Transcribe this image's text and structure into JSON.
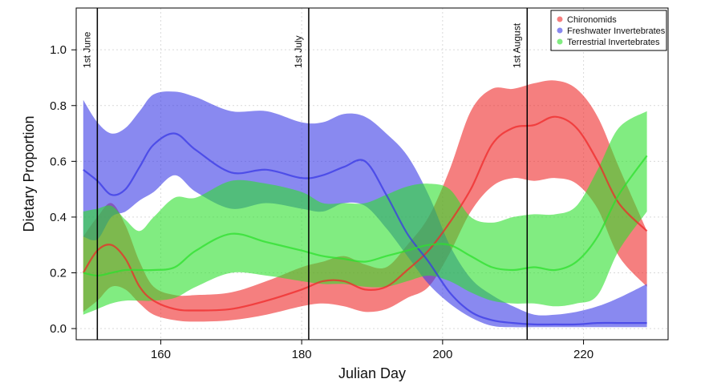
{
  "chart_data": {
    "type": "area",
    "xlabel": "Julian Day",
    "ylabel": "Dietary Proportion",
    "xlim": [
      148,
      232
    ],
    "ylim": [
      -0.04,
      1.15
    ],
    "x_ticks": [
      160,
      180,
      200,
      220
    ],
    "y_ticks": [
      0.0,
      0.2,
      0.4,
      0.6,
      0.8,
      1.0
    ],
    "x_tick_labels": [
      "160",
      "180",
      "200",
      "220"
    ],
    "y_tick_labels": [
      "0.0",
      "0.2",
      "0.4",
      "0.6",
      "0.8",
      "1.0"
    ],
    "grid": true,
    "legend_position": "top-right",
    "annotations": [
      {
        "label": "1st June",
        "x": 151
      },
      {
        "label": "1st July",
        "x": 181
      },
      {
        "label": "1st August",
        "x": 212
      }
    ],
    "series": [
      {
        "name": "Chironomids",
        "color": "#ef2a2a",
        "x": [
          149,
          151,
          153,
          155,
          157,
          159,
          162,
          165,
          170,
          175,
          180,
          183,
          186,
          189,
          192,
          195,
          198,
          201,
          204,
          207,
          210,
          213,
          216,
          219,
          222,
          225,
          229
        ],
        "mean": [
          0.2,
          0.28,
          0.3,
          0.25,
          0.15,
          0.1,
          0.07,
          0.065,
          0.07,
          0.1,
          0.14,
          0.17,
          0.17,
          0.14,
          0.15,
          0.21,
          0.28,
          0.38,
          0.5,
          0.66,
          0.72,
          0.73,
          0.76,
          0.72,
          0.6,
          0.45,
          0.35
        ],
        "lower": [
          0.06,
          0.1,
          0.15,
          0.14,
          0.09,
          0.05,
          0.03,
          0.025,
          0.03,
          0.05,
          0.08,
          0.09,
          0.08,
          0.06,
          0.07,
          0.11,
          0.15,
          0.27,
          0.42,
          0.51,
          0.54,
          0.53,
          0.54,
          0.52,
          0.43,
          0.26,
          0.15
        ],
        "upper": [
          0.33,
          0.4,
          0.45,
          0.37,
          0.24,
          0.15,
          0.12,
          0.12,
          0.13,
          0.17,
          0.22,
          0.24,
          0.26,
          0.23,
          0.22,
          0.3,
          0.4,
          0.57,
          0.78,
          0.86,
          0.86,
          0.88,
          0.89,
          0.86,
          0.76,
          0.58,
          0.35
        ]
      },
      {
        "name": "Freshwater Invertebrates",
        "color": "#3a3ae6",
        "x": [
          149,
          151,
          153,
          155,
          157,
          159,
          162,
          165,
          170,
          175,
          180,
          183,
          186,
          189,
          192,
          195,
          198,
          201,
          204,
          207,
          210,
          213,
          216,
          219,
          222,
          225,
          229
        ],
        "mean": [
          0.57,
          0.53,
          0.48,
          0.5,
          0.58,
          0.66,
          0.7,
          0.64,
          0.56,
          0.57,
          0.54,
          0.55,
          0.58,
          0.6,
          0.48,
          0.34,
          0.24,
          0.13,
          0.06,
          0.03,
          0.02,
          0.015,
          0.015,
          0.015,
          0.02,
          0.02,
          0.02
        ],
        "lower": [
          0.33,
          0.32,
          0.4,
          0.42,
          0.46,
          0.49,
          0.55,
          0.49,
          0.43,
          0.45,
          0.43,
          0.42,
          0.45,
          0.44,
          0.36,
          0.26,
          0.16,
          0.09,
          0.04,
          0.01,
          0.005,
          0.005,
          0.005,
          0.005,
          0.005,
          0.005,
          0.005
        ],
        "upper": [
          0.82,
          0.74,
          0.7,
          0.72,
          0.78,
          0.84,
          0.85,
          0.83,
          0.78,
          0.78,
          0.74,
          0.74,
          0.77,
          0.76,
          0.7,
          0.62,
          0.48,
          0.3,
          0.18,
          0.12,
          0.08,
          0.05,
          0.05,
          0.06,
          0.08,
          0.11,
          0.16
        ]
      },
      {
        "name": "Terrestrial Invertebrates",
        "color": "#2de02d",
        "x": [
          149,
          151,
          153,
          155,
          157,
          159,
          162,
          165,
          170,
          175,
          180,
          183,
          186,
          189,
          192,
          195,
          198,
          201,
          204,
          207,
          210,
          213,
          216,
          219,
          222,
          225,
          229
        ],
        "mean": [
          0.2,
          0.19,
          0.2,
          0.21,
          0.21,
          0.21,
          0.22,
          0.28,
          0.34,
          0.31,
          0.28,
          0.26,
          0.25,
          0.24,
          0.26,
          0.28,
          0.3,
          0.3,
          0.26,
          0.22,
          0.21,
          0.22,
          0.21,
          0.24,
          0.33,
          0.48,
          0.62
        ],
        "lower": [
          0.05,
          0.07,
          0.09,
          0.1,
          0.1,
          0.1,
          0.11,
          0.15,
          0.2,
          0.19,
          0.17,
          0.16,
          0.16,
          0.15,
          0.15,
          0.17,
          0.19,
          0.17,
          0.13,
          0.1,
          0.09,
          0.09,
          0.08,
          0.09,
          0.12,
          0.28,
          0.42
        ],
        "upper": [
          0.42,
          0.43,
          0.44,
          0.39,
          0.35,
          0.4,
          0.47,
          0.47,
          0.53,
          0.52,
          0.49,
          0.45,
          0.45,
          0.45,
          0.48,
          0.51,
          0.52,
          0.5,
          0.4,
          0.38,
          0.4,
          0.41,
          0.41,
          0.44,
          0.57,
          0.72,
          0.78
        ]
      }
    ]
  }
}
